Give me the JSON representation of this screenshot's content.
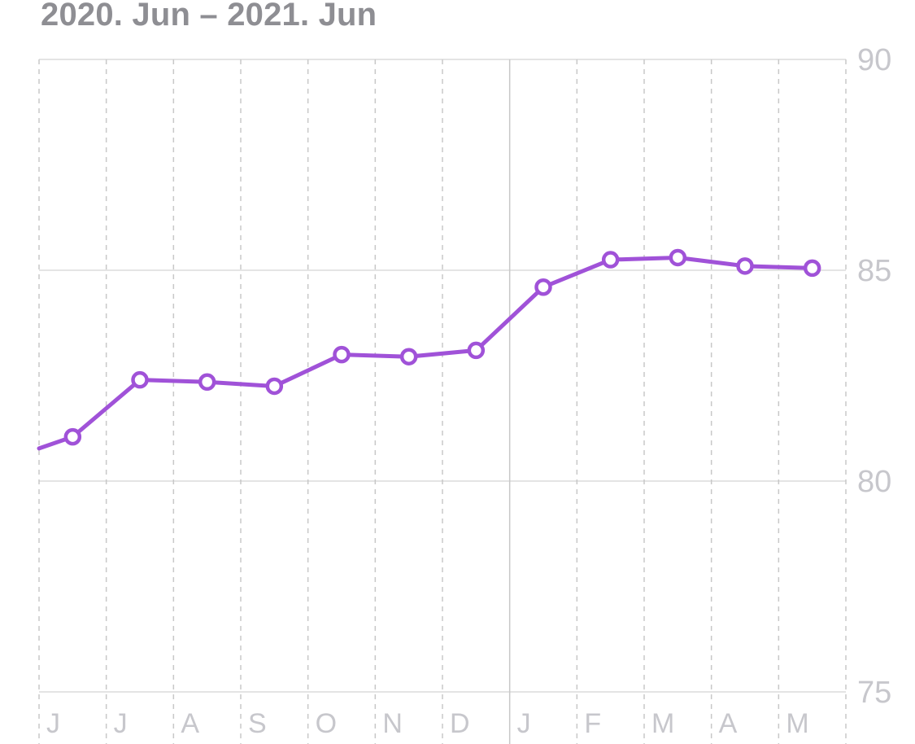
{
  "header": {
    "range_label": "2020. Jun – 2021. Jun"
  },
  "colors": {
    "series": "#a052d8"
  },
  "chart_data": {
    "type": "line",
    "x": [
      "Jun",
      "Jul",
      "Aug",
      "Sep",
      "Oct",
      "Nov",
      "Dec",
      "Jan",
      "Feb",
      "Mar",
      "Apr",
      "May",
      "Jun"
    ],
    "tick_labels": [
      "J",
      "J",
      "A",
      "S",
      "O",
      "N",
      "D",
      "J",
      "F",
      "M",
      "A",
      "M"
    ],
    "series": [
      {
        "values": [
          80.5,
          81.05,
          82.4,
          82.35,
          82.25,
          83.0,
          82.95,
          83.1,
          84.6,
          85.25,
          85.3,
          85.1,
          85.05
        ],
        "marker": "open-circle"
      }
    ],
    "leading_segment": true,
    "ylim": [
      75,
      90
    ],
    "yticks": [
      90,
      85,
      80,
      75
    ],
    "y_axis_position": "right",
    "grid": true
  }
}
